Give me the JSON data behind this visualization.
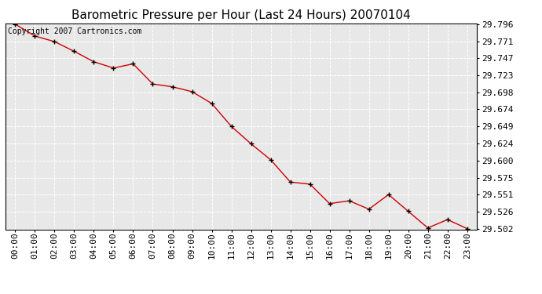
{
  "title": "Barometric Pressure per Hour (Last 24 Hours) 20070104",
  "copyright": "Copyright 2007 Cartronics.com",
  "hours": [
    "00:00",
    "01:00",
    "02:00",
    "03:00",
    "04:00",
    "05:00",
    "06:00",
    "07:00",
    "08:00",
    "09:00",
    "10:00",
    "11:00",
    "12:00",
    "13:00",
    "14:00",
    "15:00",
    "16:00",
    "17:00",
    "18:00",
    "19:00",
    "20:00",
    "21:00",
    "22:00",
    "23:00"
  ],
  "pressure": [
    29.796,
    29.779,
    29.771,
    29.757,
    29.742,
    29.733,
    29.739,
    29.71,
    29.706,
    29.699,
    29.682,
    29.649,
    29.624,
    29.601,
    29.569,
    29.566,
    29.538,
    29.542,
    29.53,
    29.551,
    29.527,
    29.503,
    29.515,
    29.502
  ],
  "yticks": [
    29.502,
    29.526,
    29.551,
    29.575,
    29.6,
    29.624,
    29.649,
    29.674,
    29.698,
    29.723,
    29.747,
    29.771,
    29.796
  ],
  "line_color": "#cc0000",
  "marker_color": "#000000",
  "bg_color": "#ffffff",
  "plot_bg_color": "#e8e8e8",
  "grid_color": "#ffffff",
  "title_fontsize": 11,
  "copyright_fontsize": 7,
  "tick_fontsize": 8
}
